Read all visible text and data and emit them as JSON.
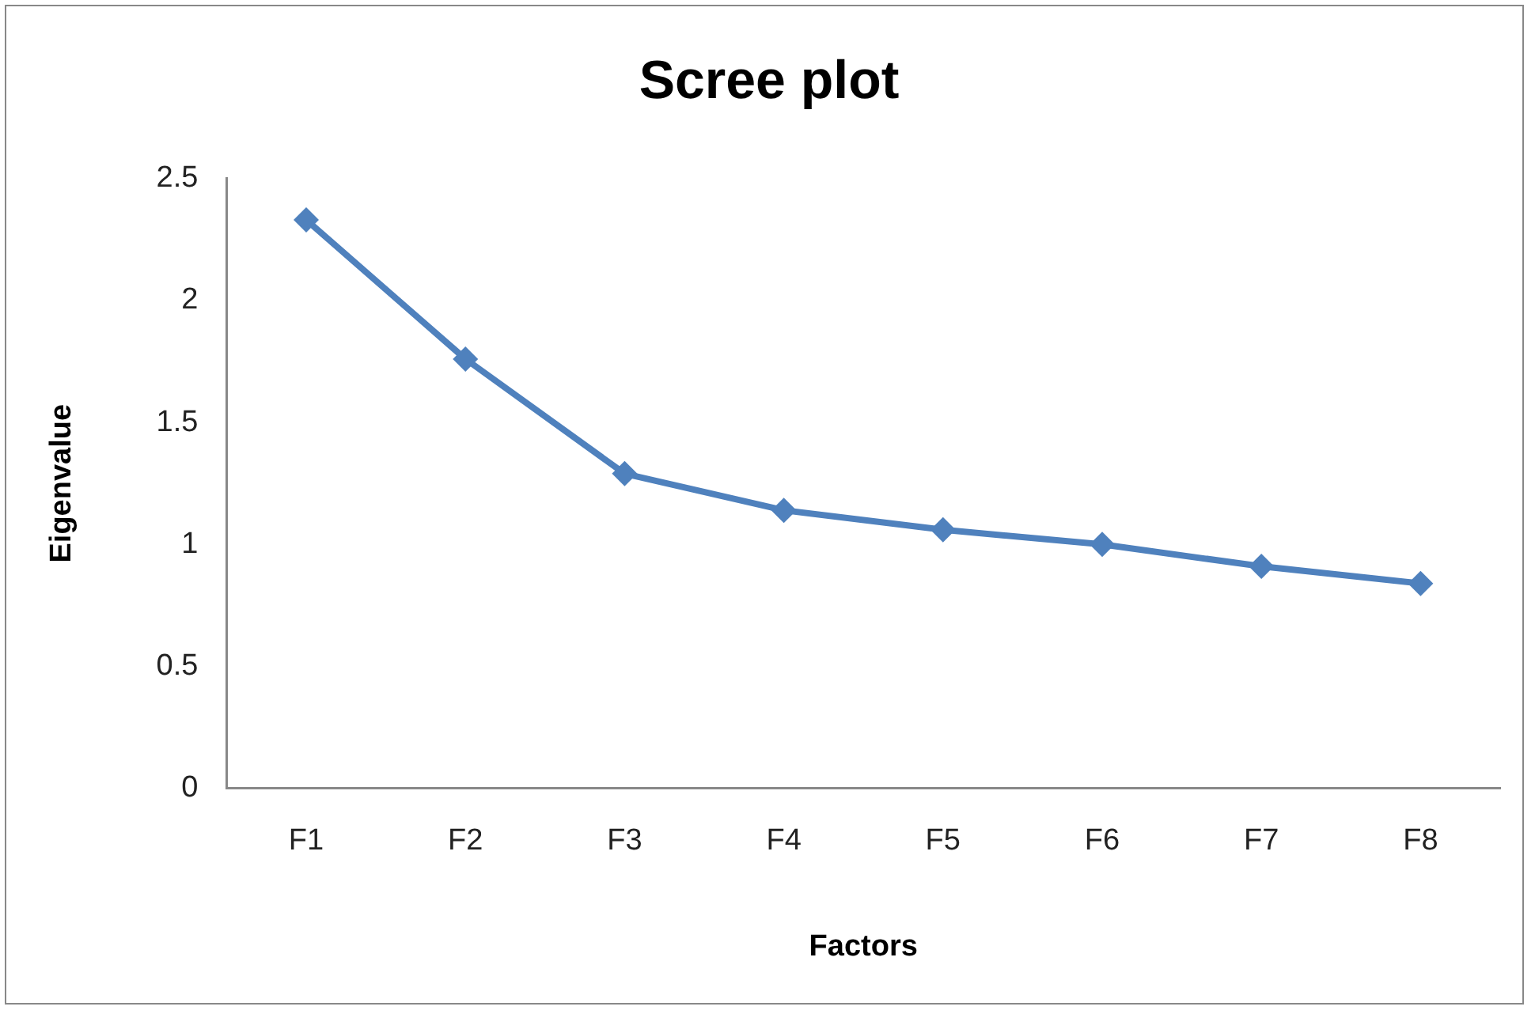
{
  "chart_data": {
    "type": "line",
    "title": "Scree plot",
    "xlabel": "Factors",
    "ylabel": "Eigenvalue",
    "categories": [
      "F1",
      "F2",
      "F3",
      "F4",
      "F5",
      "F6",
      "F7",
      "F8"
    ],
    "series": [
      {
        "color": "#4f81bd",
        "values": [
          2.33,
          1.76,
          1.29,
          1.14,
          1.06,
          1.0,
          0.91,
          0.84
        ]
      }
    ],
    "ylim": [
      0,
      2.5
    ],
    "yticks": [
      0,
      0.5,
      1,
      1.5,
      2,
      2.5
    ],
    "grid": false,
    "legend": false,
    "marker": "diamond",
    "line_style": "solid"
  }
}
